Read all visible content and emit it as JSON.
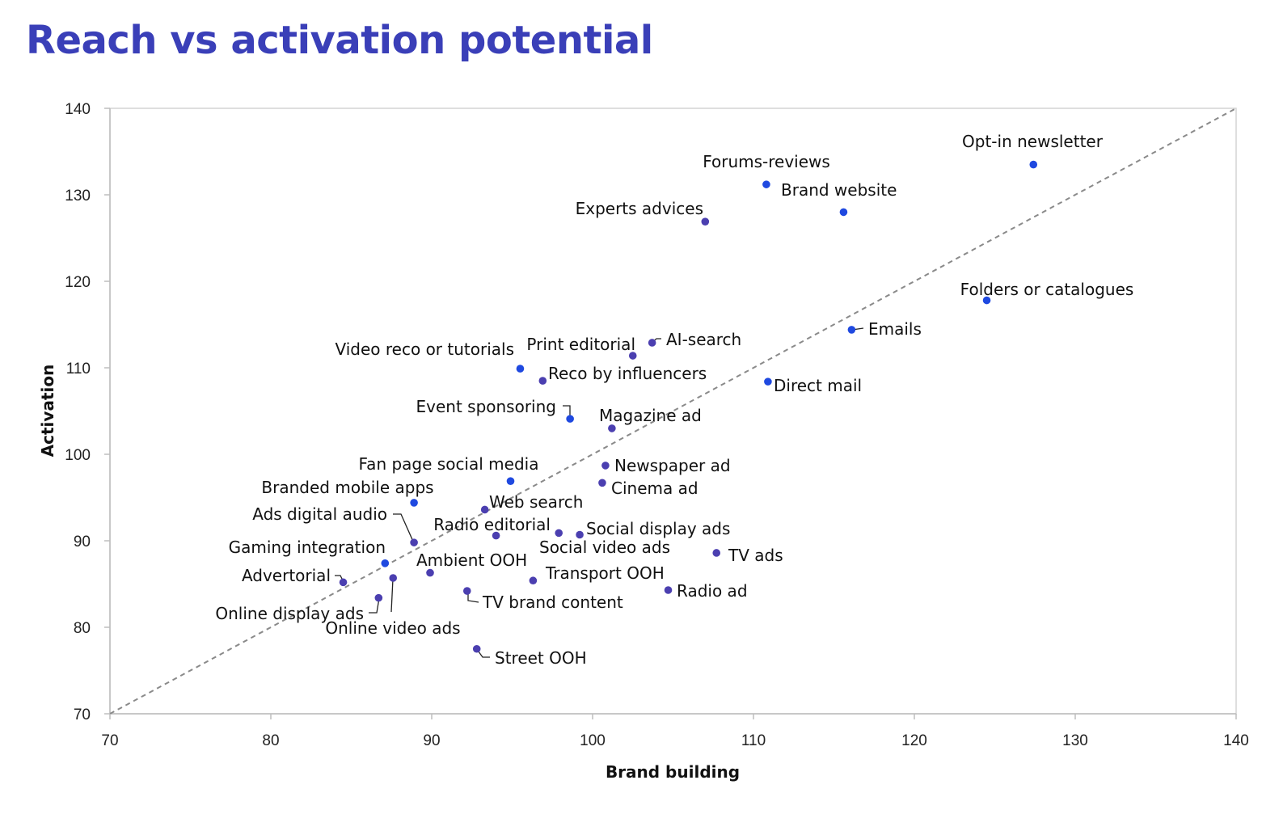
{
  "title": "Reach vs activation potential",
  "chart_data": {
    "type": "scatter",
    "title": "Reach vs activation potential",
    "xlabel": "Brand building",
    "ylabel": "Activation",
    "xlim": [
      70,
      140
    ],
    "ylim": [
      70,
      140
    ],
    "xticks": [
      "70",
      "80",
      "90",
      "100",
      "110",
      "120",
      "130",
      "140"
    ],
    "yticks": [
      "70",
      "80",
      "90",
      "100",
      "110",
      "120",
      "130",
      "140"
    ],
    "reference_line": "dashed diagonal y = x",
    "grid": false,
    "legend": "none",
    "colors": {
      "bright": "#1f49e0",
      "dark": "#4b3fb0"
    },
    "points": [
      {
        "label": "Opt-in newsletter",
        "x": 127.4,
        "y": 133.5,
        "color": "bright"
      },
      {
        "label": "Forums-reviews",
        "x": 110.8,
        "y": 131.2,
        "color": "bright"
      },
      {
        "label": "Brand website",
        "x": 115.6,
        "y": 128.0,
        "color": "bright"
      },
      {
        "label": "Experts advices",
        "x": 107.0,
        "y": 126.9,
        "color": "dark"
      },
      {
        "label": "Folders or catalogues",
        "x": 124.5,
        "y": 117.8,
        "color": "bright"
      },
      {
        "label": "Emails",
        "x": 116.1,
        "y": 114.4,
        "color": "bright"
      },
      {
        "label": "AI-search",
        "x": 103.7,
        "y": 112.9,
        "color": "dark"
      },
      {
        "label": "Print editorial",
        "x": 102.5,
        "y": 111.4,
        "color": "dark"
      },
      {
        "label": "Video reco or tutorials",
        "x": 95.5,
        "y": 109.9,
        "color": "bright"
      },
      {
        "label": "Reco by influencers",
        "x": 96.9,
        "y": 108.5,
        "color": "dark"
      },
      {
        "label": "Direct mail",
        "x": 110.9,
        "y": 108.4,
        "color": "bright"
      },
      {
        "label": "Event sponsoring",
        "x": 98.6,
        "y": 104.1,
        "color": "bright"
      },
      {
        "label": "Magazine ad",
        "x": 101.2,
        "y": 103.0,
        "color": "dark"
      },
      {
        "label": "Newspaper ad",
        "x": 100.8,
        "y": 98.7,
        "color": "dark"
      },
      {
        "label": "Fan page social media",
        "x": 94.9,
        "y": 96.9,
        "color": "bright"
      },
      {
        "label": "Cinema ad",
        "x": 100.6,
        "y": 96.7,
        "color": "dark"
      },
      {
        "label": "Branded mobile apps",
        "x": 88.9,
        "y": 94.4,
        "color": "bright"
      },
      {
        "label": "Web search",
        "x": 93.3,
        "y": 93.6,
        "color": "dark"
      },
      {
        "label": "Radio editorial",
        "x": 97.9,
        "y": 90.9,
        "color": "dark"
      },
      {
        "label": "Social display ads",
        "x": 99.2,
        "y": 90.7,
        "color": "dark"
      },
      {
        "label": "Social video ads",
        "x": 94.0,
        "y": 90.6,
        "color": "dark"
      },
      {
        "label": "Ads digital audio",
        "x": 88.9,
        "y": 89.8,
        "color": "dark"
      },
      {
        "label": "TV ads",
        "x": 107.7,
        "y": 88.6,
        "color": "dark"
      },
      {
        "label": "Gaming integration",
        "x": 87.1,
        "y": 87.4,
        "color": "bright"
      },
      {
        "label": "Ambient OOH",
        "x": 89.9,
        "y": 86.3,
        "color": "dark"
      },
      {
        "label": "Transport OOH",
        "x": 96.3,
        "y": 85.4,
        "color": "dark"
      },
      {
        "label": "Online video ads",
        "x": 87.6,
        "y": 85.7,
        "color": "dark"
      },
      {
        "label": "Advertorial",
        "x": 84.5,
        "y": 85.2,
        "color": "dark"
      },
      {
        "label": "Radio ad",
        "x": 104.7,
        "y": 84.3,
        "color": "dark"
      },
      {
        "label": "TV brand content",
        "x": 92.2,
        "y": 84.2,
        "color": "dark"
      },
      {
        "label": "Online display ads",
        "x": 86.7,
        "y": 83.4,
        "color": "dark"
      },
      {
        "label": "Street OOH",
        "x": 92.8,
        "y": 77.5,
        "color": "dark"
      }
    ]
  }
}
